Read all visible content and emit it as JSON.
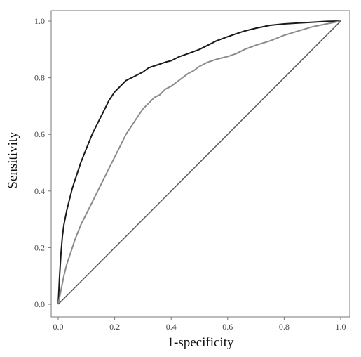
{
  "chart_data": {
    "type": "line",
    "title": "",
    "xlabel": "1-specificity",
    "ylabel": "Sensitivity",
    "xlim": [
      0,
      1
    ],
    "ylim": [
      0,
      1
    ],
    "x_ticks": [
      "0.0",
      "0.2",
      "0.4",
      "0.6",
      "0.8",
      "1.0"
    ],
    "y_ticks": [
      "0.0",
      "0.2",
      "0.4",
      "0.6",
      "0.8",
      "1.0"
    ],
    "grid": false,
    "legend": "none",
    "series": [
      {
        "color": "#1a1a1a",
        "x": [
          0.0,
          0.005,
          0.01,
          0.015,
          0.02,
          0.03,
          0.04,
          0.05,
          0.06,
          0.07,
          0.08,
          0.1,
          0.12,
          0.14,
          0.16,
          0.18,
          0.2,
          0.22,
          0.24,
          0.26,
          0.28,
          0.3,
          0.32,
          0.35,
          0.38,
          0.4,
          0.43,
          0.46,
          0.5,
          0.53,
          0.56,
          0.6,
          0.63,
          0.66,
          0.7,
          0.75,
          0.8,
          0.85,
          0.9,
          0.95,
          1.0
        ],
        "y": [
          0.0,
          0.1,
          0.18,
          0.24,
          0.28,
          0.33,
          0.37,
          0.41,
          0.44,
          0.47,
          0.5,
          0.55,
          0.6,
          0.64,
          0.68,
          0.72,
          0.75,
          0.77,
          0.79,
          0.8,
          0.81,
          0.82,
          0.835,
          0.845,
          0.855,
          0.86,
          0.875,
          0.885,
          0.9,
          0.915,
          0.93,
          0.945,
          0.955,
          0.965,
          0.975,
          0.985,
          0.99,
          0.993,
          0.996,
          0.999,
          1.0
        ]
      },
      {
        "color": "#8c8c8c",
        "x": [
          0.0,
          0.01,
          0.02,
          0.03,
          0.04,
          0.05,
          0.06,
          0.08,
          0.1,
          0.12,
          0.14,
          0.16,
          0.18,
          0.2,
          0.22,
          0.24,
          0.26,
          0.28,
          0.3,
          0.32,
          0.34,
          0.36,
          0.38,
          0.4,
          0.42,
          0.44,
          0.46,
          0.48,
          0.5,
          0.53,
          0.56,
          0.6,
          0.63,
          0.66,
          0.7,
          0.75,
          0.8,
          0.85,
          0.9,
          0.95,
          1.0
        ],
        "y": [
          0.0,
          0.05,
          0.1,
          0.14,
          0.17,
          0.2,
          0.23,
          0.28,
          0.32,
          0.36,
          0.4,
          0.44,
          0.48,
          0.52,
          0.56,
          0.6,
          0.63,
          0.66,
          0.69,
          0.71,
          0.73,
          0.74,
          0.76,
          0.77,
          0.785,
          0.8,
          0.815,
          0.825,
          0.84,
          0.855,
          0.865,
          0.875,
          0.885,
          0.9,
          0.915,
          0.93,
          0.95,
          0.965,
          0.98,
          0.99,
          1.0
        ]
      },
      {
        "color": "#555555",
        "x": [
          0,
          1
        ],
        "y": [
          0,
          1
        ]
      }
    ]
  }
}
